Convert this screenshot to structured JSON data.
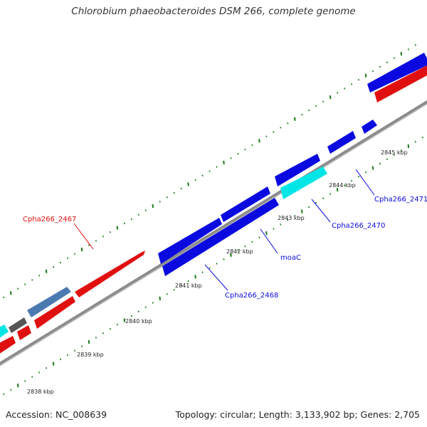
{
  "title": "Chlorobium phaeobacteroides DSM 266, complete genome",
  "accession": "Accession: NC_008639",
  "summary": "Topology: circular; Length: 3,133,902 bp; Genes: 2,705",
  "colors": {
    "cds_forward": "#e01010",
    "cds_reverse": "#0a0ae0",
    "cds_cyan": "#00e5e5",
    "cds_steel": "#4a7ab0",
    "cds_gray": "#555555",
    "backbone": "#909090",
    "tick": "#1a7a1a"
  },
  "tick_labels": [
    "2838 kbp",
    "2839 kbp",
    "2840 kbp",
    "2841 kbp",
    "2842 kbp",
    "2843 kbp",
    "2844 kbp",
    "2845 kbp"
  ],
  "gene_labels": [
    {
      "name": "Cpha266_2467",
      "color": "#e01010"
    },
    {
      "name": "Cpha266_2468",
      "color": "#0a0ae0"
    },
    {
      "name": "moaC",
      "color": "#0a0ae0"
    },
    {
      "name": "Cpha266_2470",
      "color": "#0a0ae0"
    },
    {
      "name": "Cpha266_2471",
      "color": "#0a0ae0"
    }
  ]
}
